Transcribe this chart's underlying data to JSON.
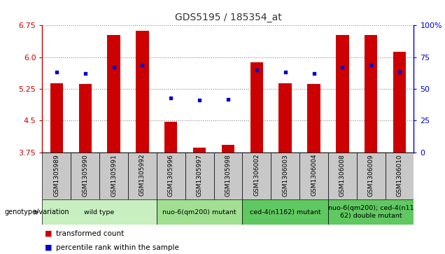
{
  "title": "GDS5195 / 185354_at",
  "samples": [
    "GSM1305989",
    "GSM1305990",
    "GSM1305991",
    "GSM1305992",
    "GSM1305996",
    "GSM1305997",
    "GSM1305998",
    "GSM1306002",
    "GSM1306003",
    "GSM1306004",
    "GSM1306008",
    "GSM1306009",
    "GSM1306010"
  ],
  "red_values": [
    5.38,
    5.36,
    6.52,
    6.63,
    4.48,
    3.87,
    3.93,
    5.88,
    5.38,
    5.36,
    6.52,
    6.52,
    6.12
  ],
  "blue_pct": [
    63,
    62,
    67,
    69,
    43,
    41,
    42,
    65,
    63,
    62,
    67,
    69,
    63
  ],
  "ymin": 3.75,
  "ymax": 6.75,
  "yticks": [
    3.75,
    4.5,
    5.25,
    6.0,
    6.75
  ],
  "right_yticks": [
    0,
    25,
    50,
    75,
    100
  ],
  "groups": [
    {
      "label": "wild type",
      "indices": [
        0,
        1,
        2,
        3
      ],
      "color": "#c8f0c0"
    },
    {
      "label": "nuo-6(qm200) mutant",
      "indices": [
        4,
        5,
        6
      ],
      "color": "#a0e890"
    },
    {
      "label": "ced-4(n1162) mutant",
      "indices": [
        7,
        8,
        9
      ],
      "color": "#70d060"
    },
    {
      "label": "nuo-6(qm200); ced-4(n11\n62) double mutant",
      "indices": [
        10,
        11,
        12
      ],
      "color": "#70d060"
    }
  ],
  "legend_label_red": "transformed count",
  "legend_label_blue": "percentile rank within the sample",
  "genotype_label": "genotype/variation",
  "bar_color": "#cc0000",
  "dot_color": "#0000cc",
  "left_axis_color": "#cc0000",
  "right_axis_color": "#0000cc",
  "sample_bg_color": "#c8c8c8",
  "plot_bg_color": "#ffffff",
  "bar_width": 0.45
}
